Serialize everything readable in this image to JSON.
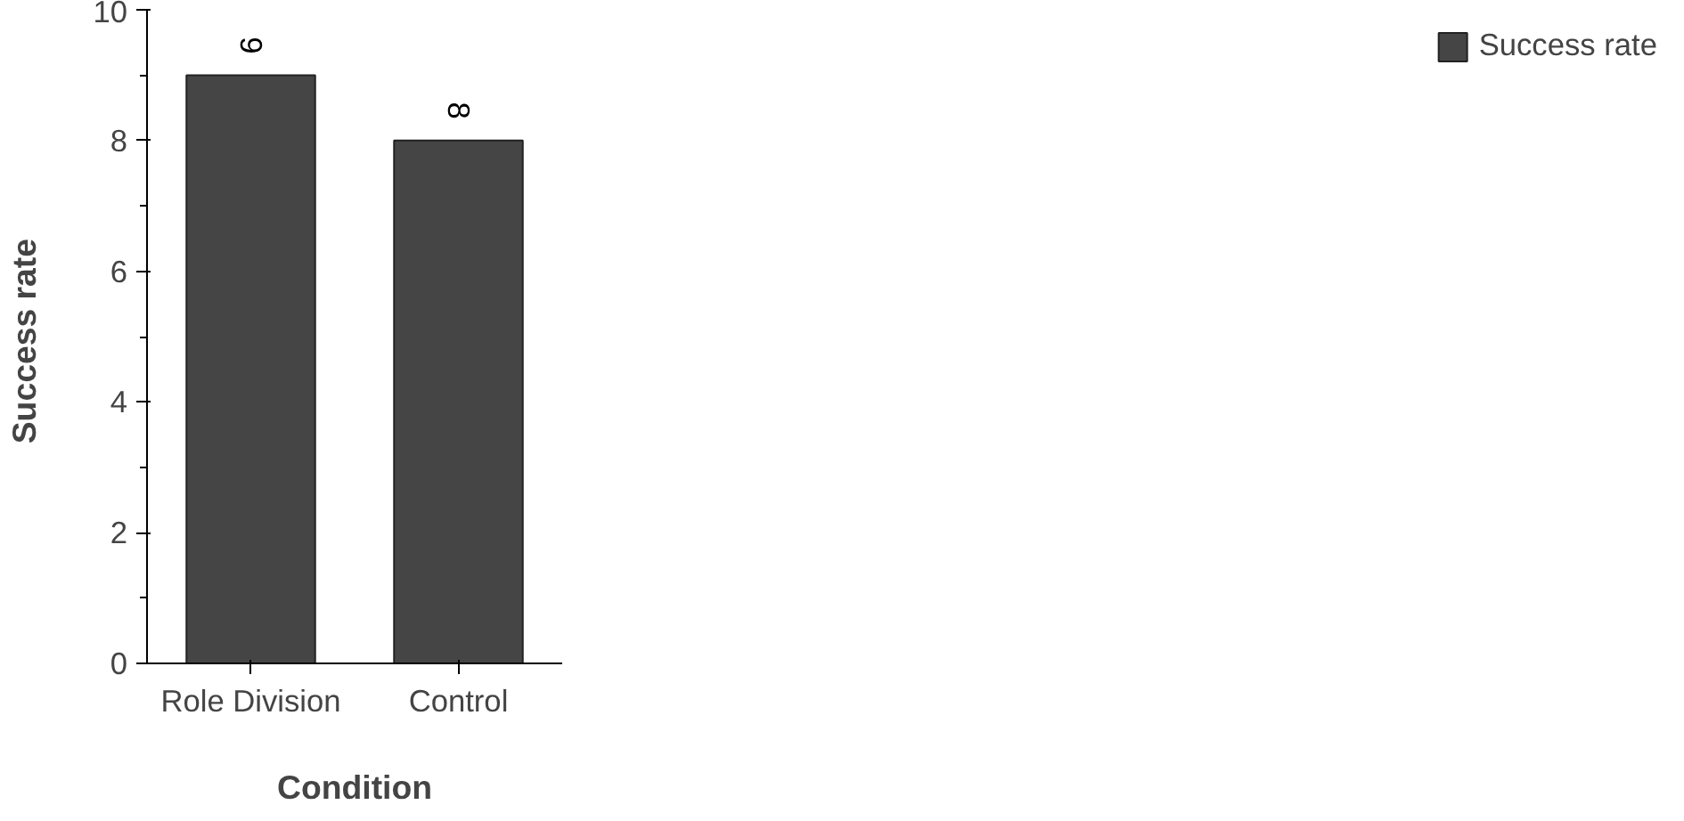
{
  "chart_data": {
    "type": "bar",
    "xlabel": "Condition",
    "ylabel": "Success  rate",
    "categories": [
      "Role Division",
      "Control"
    ],
    "series": [
      {
        "name": "Success rate",
        "color": "#454545",
        "values": [
          9,
          8
        ]
      }
    ],
    "ylim": [
      0,
      10
    ],
    "yticks": [
      0,
      2,
      4,
      6,
      8,
      10
    ],
    "grid": false,
    "legend": "right",
    "data_labels": true
  }
}
